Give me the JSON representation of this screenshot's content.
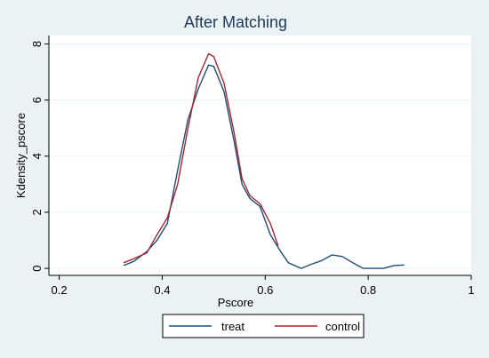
{
  "chart_data": {
    "type": "line",
    "title": "After Matching",
    "xlabel": "Pscore",
    "ylabel": "Kdensity_pscore",
    "xlim": [
      0.18,
      1.0
    ],
    "ylim": [
      -0.25,
      8.3
    ],
    "xticks": [
      0.2,
      0.4,
      0.6,
      0.8,
      1
    ],
    "xtick_labels": [
      "0.2",
      "0.4",
      "0.6",
      "0.8",
      "1"
    ],
    "yticks": [
      0,
      2,
      4,
      6,
      8
    ],
    "ytick_labels": [
      "0",
      "2",
      "4",
      "6",
      "8"
    ],
    "grid": "horizontal",
    "legend_position": "bottom",
    "series": [
      {
        "name": "treat",
        "color": "#1f4e79",
        "x": [
          0.325,
          0.345,
          0.37,
          0.39,
          0.41,
          0.43,
          0.45,
          0.47,
          0.49,
          0.5,
          0.52,
          0.54,
          0.555,
          0.57,
          0.59,
          0.61,
          0.63,
          0.645,
          0.67,
          0.69,
          0.71,
          0.73,
          0.75,
          0.77,
          0.79,
          0.81,
          0.83,
          0.85,
          0.87
        ],
        "y": [
          0.1,
          0.25,
          0.6,
          1.0,
          1.6,
          3.5,
          5.3,
          6.4,
          7.25,
          7.2,
          6.3,
          4.5,
          3.0,
          2.5,
          2.2,
          1.2,
          0.6,
          0.2,
          0.0,
          0.15,
          0.28,
          0.48,
          0.42,
          0.2,
          0.0,
          0.0,
          0.0,
          0.1,
          0.12
        ]
      },
      {
        "name": "control",
        "color": "#a5262f",
        "x": [
          0.325,
          0.345,
          0.37,
          0.39,
          0.41,
          0.43,
          0.45,
          0.47,
          0.49,
          0.5,
          0.52,
          0.54,
          0.555,
          0.57,
          0.59,
          0.61,
          0.625
        ],
        "y": [
          0.2,
          0.35,
          0.55,
          1.2,
          1.8,
          3.0,
          5.0,
          6.8,
          7.65,
          7.55,
          6.6,
          4.8,
          3.2,
          2.6,
          2.3,
          1.6,
          0.8
        ]
      }
    ]
  }
}
